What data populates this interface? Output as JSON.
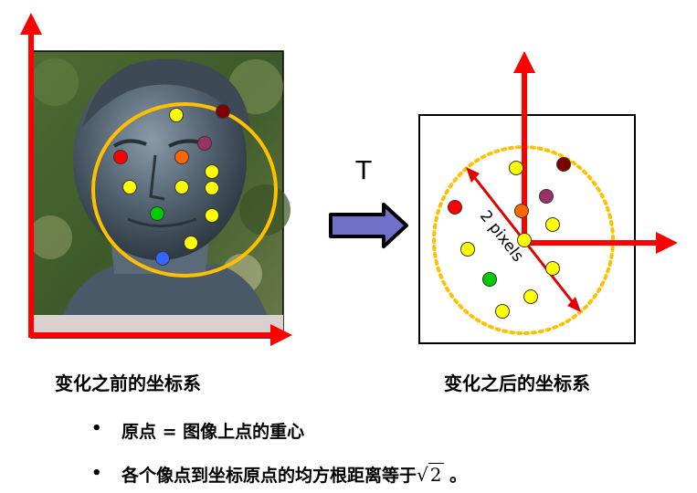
{
  "transform_label": "T",
  "distance_label": "2 pixels",
  "caption_before": "变化之前的坐标系",
  "caption_after": "变化之后的坐标系",
  "bullets": [
    {
      "text": "原点 = 图像上点的重心"
    },
    {
      "text": "各个像点到坐标原点的均方根距离等于",
      "sqrt_symbol": "√",
      "sqrt_radicand": "2",
      "suffix": "。"
    }
  ],
  "colors": {
    "axis": "#ff0000",
    "circle": "#ffc000",
    "arrow_fill": "#7070c8",
    "distance_arrow": "#e00000"
  },
  "points_before": [
    {
      "color": "#ffff00"
    },
    {
      "color": "#800000"
    },
    {
      "color": "#993366"
    },
    {
      "color": "#ff0000"
    },
    {
      "color": "#ff6600"
    },
    {
      "color": "#ffff00"
    },
    {
      "color": "#ffff00"
    },
    {
      "color": "#ffff00"
    },
    {
      "color": "#ffff00"
    },
    {
      "color": "#00cc00"
    },
    {
      "color": "#ffff00"
    },
    {
      "color": "#ffff00"
    },
    {
      "color": "#3366ff"
    }
  ],
  "points_after": [
    {
      "color": "#ffff00"
    },
    {
      "color": "#800000"
    },
    {
      "color": "#993366"
    },
    {
      "color": "#ff0000"
    },
    {
      "color": "#ff6600"
    },
    {
      "color": "#ffff00"
    },
    {
      "color": "#ffff00"
    },
    {
      "color": "#ffff00"
    },
    {
      "color": "#ffff00"
    },
    {
      "color": "#00cc00"
    },
    {
      "color": "#ffff00"
    },
    {
      "color": "#ffff00"
    },
    {
      "color": "#3366ff"
    }
  ]
}
